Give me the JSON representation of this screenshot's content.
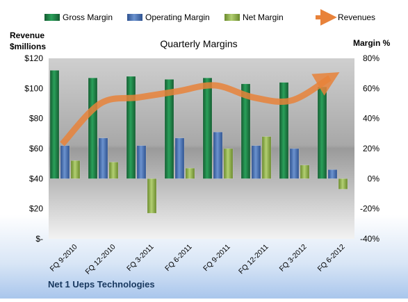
{
  "chart_data": {
    "type": "bar",
    "title": "Quarterly Margins",
    "left_axis_label": [
      "Revenue",
      "$millions"
    ],
    "right_axis_label": "Margin %",
    "left_ylim": [
      0,
      120
    ],
    "left_ticks": [
      0,
      20,
      40,
      60,
      80,
      100,
      120
    ],
    "left_tick_labels": [
      "$-",
      "$20",
      "$40",
      "$60",
      "$80",
      "$100",
      "$120"
    ],
    "right_ylim": [
      -40,
      80
    ],
    "right_ticks": [
      -40,
      -20,
      0,
      20,
      40,
      60,
      80
    ],
    "right_tick_labels": [
      "-40%",
      "-20%",
      "0%",
      "20%",
      "40%",
      "60%",
      "80%"
    ],
    "categories": [
      "FQ 9-2010",
      "FQ 12-2010",
      "FQ 3-2011",
      "FQ 6-2011",
      "FQ 9-2011",
      "FQ 12-2011",
      "FQ 3-2012",
      "FQ 6-2012"
    ],
    "series": [
      {
        "name": "Gross Margin",
        "axis": "right",
        "kind": "bar",
        "color": "#1e7b45",
        "values": [
          72,
          67,
          68,
          66,
          67,
          63,
          64,
          61
        ]
      },
      {
        "name": "Operating Margin",
        "axis": "right",
        "kind": "bar",
        "color": "#4a74b5",
        "values": [
          22,
          27,
          22,
          27,
          31,
          22,
          20,
          6
        ]
      },
      {
        "name": "Net Margin",
        "axis": "right",
        "kind": "bar",
        "color": "#8fb049",
        "values": [
          12,
          11,
          -23,
          7,
          20,
          28,
          9,
          -7
        ]
      },
      {
        "name": "Revenues",
        "axis": "left",
        "kind": "line",
        "color": "#e8823a",
        "values": [
          63,
          90,
          94,
          98,
          102,
          94,
          92,
          107
        ]
      }
    ],
    "grid": false,
    "legend_position": "top"
  },
  "footer": {
    "company": "Net 1 Ueps Technologies"
  }
}
